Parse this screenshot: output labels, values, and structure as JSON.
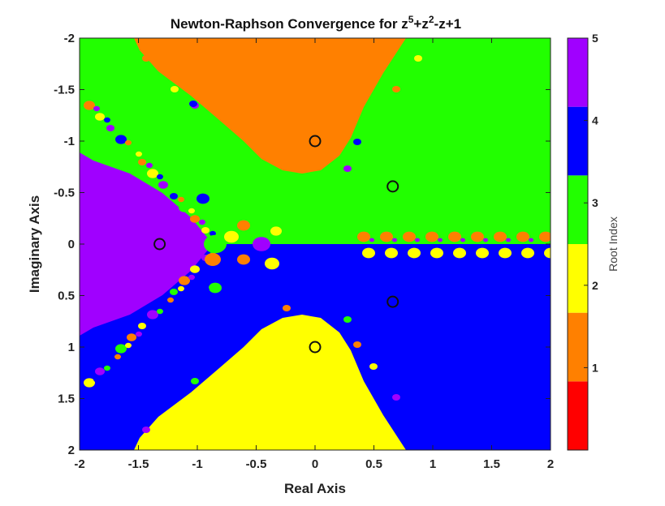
{
  "chart_data": {
    "type": "heatmap",
    "title_text": "Newton-Raphson Convergence for z",
    "title_sup1": "5",
    "title_mid": "+z",
    "title_sup2": "2",
    "title_end": "-z+1",
    "xlabel": "Real Axis",
    "ylabel": "Imaginary Axis",
    "xlim": [
      -2,
      2
    ],
    "ylim": [
      -2,
      2
    ],
    "y_axis_direction": "reversed",
    "xticks": [
      "-2",
      "-1.5",
      "-1",
      "-0.5",
      "0",
      "0.5",
      "1",
      "1.5",
      "2"
    ],
    "yticks": [
      "-2",
      "-1.5",
      "-1",
      "-0.5",
      "0",
      "0.5",
      "1",
      "1.5",
      "2"
    ],
    "roots": [
      {
        "x": -1.32,
        "y": 0.0
      },
      {
        "x": 0.0,
        "y": -1.0
      },
      {
        "x": 0.66,
        "y": -0.56
      },
      {
        "x": 0.66,
        "y": 0.56
      },
      {
        "x": 0.0,
        "y": 1.0
      }
    ],
    "region_colors": {
      "purple": "#a000ff",
      "orange": "#ff8000",
      "green": "#22ff00",
      "blue": "#0000ff",
      "yellow": "#ffff00"
    },
    "colorbar": {
      "label": "Root Index",
      "range": [
        0,
        5
      ],
      "ticks": [
        "1",
        "2",
        "3",
        "4",
        "5"
      ],
      "colors": [
        "#ff0000",
        "#ff8000",
        "#ffff00",
        "#22ff00",
        "#0000ff",
        "#a000ff"
      ]
    },
    "grid": false
  }
}
